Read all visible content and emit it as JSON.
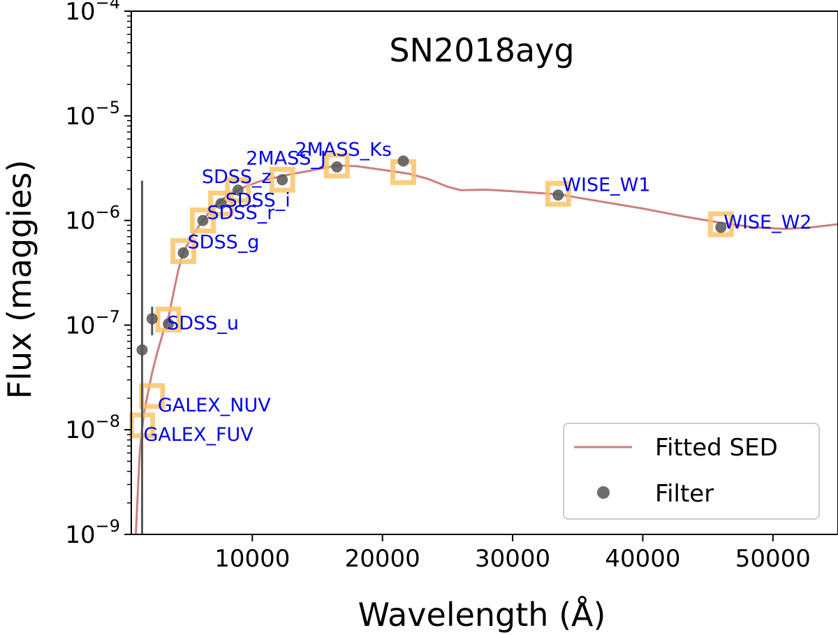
{
  "chart_data": {
    "type": "scatter",
    "title": "SN2018ayg",
    "xlabel": "Wavelength (Å)",
    "ylabel": "Flux (maggies)",
    "xlim": [
      700,
      55000
    ],
    "ylim_log10": [
      -9,
      -4
    ],
    "xticks": [
      10000,
      20000,
      30000,
      40000,
      50000
    ],
    "xtick_labels": [
      "10000",
      "20000",
      "30000",
      "40000",
      "50000"
    ],
    "yticks_log10": [
      -9,
      -8,
      -7,
      -6,
      -5,
      -4
    ],
    "ytick_base": "10",
    "ytick_exponents": [
      "−9",
      "−8",
      "−7",
      "−6",
      "−5",
      "−4"
    ],
    "legend": {
      "placement": "lower-right",
      "entries": [
        "Fitted SED",
        "Filter"
      ]
    },
    "colors": {
      "sed": "#cd7f7f",
      "filter_point": "#555555",
      "model_square": "#f9c46a",
      "label": "#0000ee",
      "errorbar": "#555555"
    },
    "fitted_sed": [
      [
        1050,
        1e-09
      ],
      [
        1200,
        2.5e-09
      ],
      [
        1350,
        6e-09
      ],
      [
        1500,
        9.5e-09
      ],
      [
        1700,
        1.5e-08
      ],
      [
        2000,
        2.3e-08
      ],
      [
        2300,
        3.5e-08
      ],
      [
        2700,
        5.5e-08
      ],
      [
        3200,
        9e-08
      ],
      [
        3600,
        1.25e-07
      ],
      [
        4000,
        2.2e-07
      ],
      [
        4300,
        3.3e-07
      ],
      [
        4700,
        5e-07
      ],
      [
        5500,
        7.5e-07
      ],
      [
        6200,
        1e-06
      ],
      [
        7000,
        1.35e-06
      ],
      [
        8000,
        1.7e-06
      ],
      [
        9000,
        2e-06
      ],
      [
        10500,
        2.35e-06
      ],
      [
        12500,
        2.7e-06
      ],
      [
        14500,
        3e-06
      ],
      [
        16500,
        3.35e-06
      ],
      [
        18000,
        3.3e-06
      ],
      [
        20000,
        3.05e-06
      ],
      [
        22000,
        2.8e-06
      ],
      [
        23500,
        2.5e-06
      ],
      [
        25000,
        2.1e-06
      ],
      [
        26000,
        1.95e-06
      ],
      [
        28000,
        1.97e-06
      ],
      [
        30000,
        1.9e-06
      ],
      [
        33500,
        1.78e-06
      ],
      [
        37000,
        1.5e-06
      ],
      [
        40000,
        1.3e-06
      ],
      [
        43000,
        1.1e-06
      ],
      [
        46000,
        9.5e-07
      ],
      [
        48500,
        8.6e-07
      ],
      [
        51000,
        8.3e-07
      ],
      [
        53000,
        8.6e-07
      ],
      [
        55000,
        9.2e-07
      ]
    ],
    "model_photometry": [
      {
        "name": "GALEX_FUV",
        "x": 1530,
        "y": 1.1e-08
      },
      {
        "name": "GALEX_NUV",
        "x": 2300,
        "y": 2.1e-08
      },
      {
        "name": "SDSS_u",
        "x": 3550,
        "y": 1.13e-07
      },
      {
        "name": "SDSS_g",
        "x": 4700,
        "y": 5.1e-07
      },
      {
        "name": "SDSS_r",
        "x": 6200,
        "y": 1e-06
      },
      {
        "name": "SDSS_i",
        "x": 7600,
        "y": 1.45e-06
      },
      {
        "name": "SDSS_z",
        "x": 8900,
        "y": 1.95e-06
      },
      {
        "name": "2MASS_J",
        "x": 12300,
        "y": 2.45e-06
      },
      {
        "name": "2MASS_Ks",
        "x": 16500,
        "y": 3.35e-06
      },
      {
        "name": "",
        "x": 21600,
        "y": 2.9e-06
      },
      {
        "name": "WISE_W1",
        "x": 33500,
        "y": 1.8e-06
      },
      {
        "name": "WISE_W2",
        "x": 46000,
        "y": 9.2e-07
      }
    ],
    "observed_filters": [
      {
        "x": 1530,
        "y": 5.8e-08,
        "yerr_lo": 1e-09,
        "yerr_hi": 2.4e-06
      },
      {
        "x": 2300,
        "y": 1.15e-07,
        "yerr_lo": 8e-08,
        "yerr_hi": 1.5e-07
      },
      {
        "x": 3550,
        "y": 1.03e-07
      },
      {
        "x": 4700,
        "y": 4.9e-07
      },
      {
        "x": 6200,
        "y": 1e-06
      },
      {
        "x": 7600,
        "y": 1.45e-06
      },
      {
        "x": 8900,
        "y": 1.95e-06
      },
      {
        "x": 12300,
        "y": 2.45e-06
      },
      {
        "x": 16500,
        "y": 3.25e-06
      },
      {
        "x": 21600,
        "y": 3.7e-06
      },
      {
        "x": 33500,
        "y": 1.75e-06
      },
      {
        "x": 46000,
        "y": 8.6e-07
      }
    ]
  }
}
